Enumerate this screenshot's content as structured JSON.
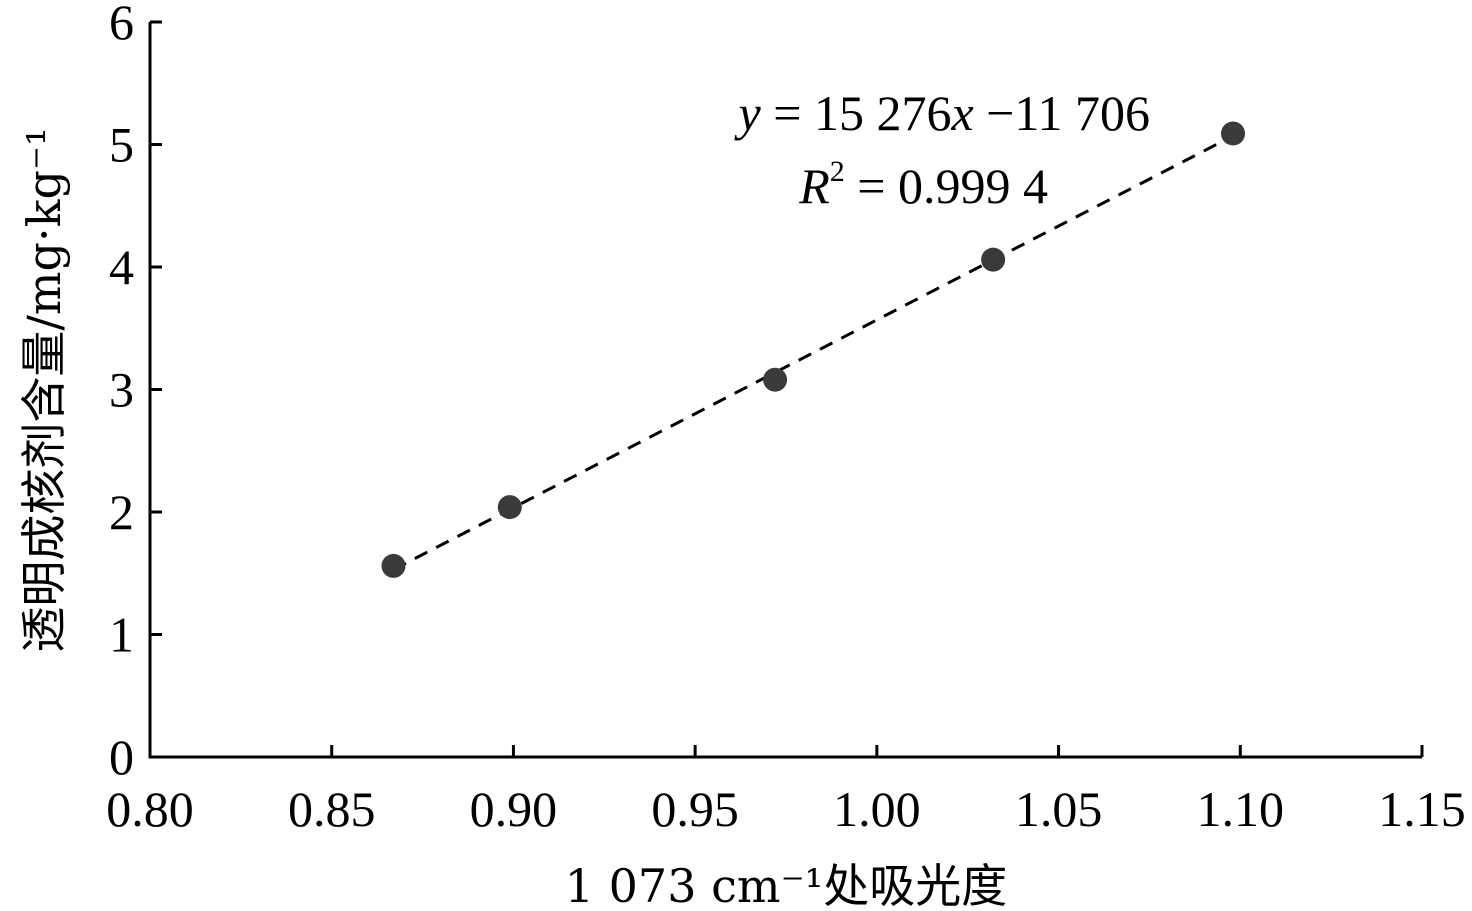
{
  "chart_data": {
    "type": "scatter",
    "xlabel": "1 073 cm⁻¹处吸光度",
    "ylabel": "透明成核剂含量/mg·kg⁻¹",
    "xlim": [
      0.8,
      1.15
    ],
    "ylim": [
      0,
      6
    ],
    "x_ticks": [
      "0.80",
      "0.85",
      "0.90",
      "0.95",
      "1.00",
      "1.05",
      "1.10",
      "1.15"
    ],
    "y_ticks": [
      "0",
      "1",
      "2",
      "3",
      "4",
      "5",
      "6"
    ],
    "points": [
      {
        "x": 0.867,
        "y": 1.56
      },
      {
        "x": 0.899,
        "y": 2.04
      },
      {
        "x": 0.972,
        "y": 3.08
      },
      {
        "x": 1.032,
        "y": 4.06
      },
      {
        "x": 1.098,
        "y": 5.09
      }
    ],
    "fit_line": {
      "x": [
        0.867,
        1.098
      ],
      "y": [
        1.53,
        5.07
      ],
      "style": "dashed"
    },
    "equation": {
      "var": "y",
      "rest": " = 15 276",
      "x_var": "x",
      "tail": " −11 706"
    },
    "r_squared": {
      "var": "R",
      "sup": "2",
      "rest": " = 0.999 4"
    },
    "grid": false,
    "colors": {
      "point": "#3a3a3a",
      "line": "#000000"
    }
  }
}
